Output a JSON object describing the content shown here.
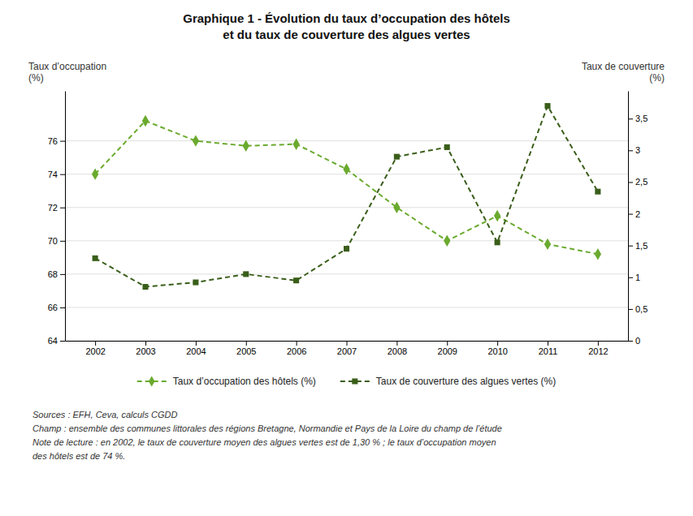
{
  "chart_data": {
    "type": "line",
    "title": [
      "Graphique 1 - Évolution du taux d’occupation des hôtels",
      "et du taux de couverture des algues vertes"
    ],
    "ylabel": [
      "Taux d’occupation",
      "(%)"
    ],
    "y2label": [
      "Taux de couverture",
      "(%)"
    ],
    "x": [
      2002,
      2003,
      2004,
      2005,
      2006,
      2007,
      2008,
      2009,
      2010,
      2011,
      2012
    ],
    "xlim": [
      2001.4,
      2012.6
    ],
    "xticks": [
      2002,
      2003,
      2004,
      2005,
      2006,
      2007,
      2008,
      2009,
      2010,
      2011,
      2012
    ],
    "ylim": [
      64,
      79
    ],
    "yticks": [
      64,
      66,
      68,
      70,
      72,
      74,
      76
    ],
    "y2lim": [
      0,
      3.9375
    ],
    "y2ticks": [
      0,
      {
        "value": 0.5,
        "label": "0,5"
      },
      1,
      {
        "value": 1.5,
        "label": "1,5"
      },
      2,
      {
        "value": 2.5,
        "label": "2,5"
      },
      3,
      {
        "value": 3.5,
        "label": "3,5"
      }
    ],
    "grid": true,
    "legend": "bottom",
    "series": [
      {
        "name": "Taux d’occupation des hôtels (%)",
        "color": "#6aaa2e",
        "marker": "diamond",
        "line_style": "dashed",
        "values": [
          74.0,
          77.2,
          76.0,
          75.7,
          75.8,
          74.3,
          72.0,
          70.0,
          71.5,
          69.8,
          69.2
        ]
      },
      {
        "name": "Taux de couverture des algues vertes (%)",
        "color": "#3a5e1a",
        "marker": "square",
        "line_style": "dashed",
        "axis": "y2",
        "values": [
          1.3,
          0.85,
          0.92,
          1.05,
          0.95,
          1.45,
          2.9,
          3.05,
          1.55,
          3.7,
          2.35
        ]
      }
    ],
    "annotations": [
      "Sources : EFH, Ceva, calculs CGDD",
      "Champ : ensemble des communes littorales des régions Bretagne, Normandie et Pays de la Loire du champ de l’étude",
      "Note de lecture : en 2002, le taux de couverture moyen des algues vertes est de 1,30 % ; le taux d’occupation moyen",
      "des hôtels est de 74 %."
    ]
  }
}
